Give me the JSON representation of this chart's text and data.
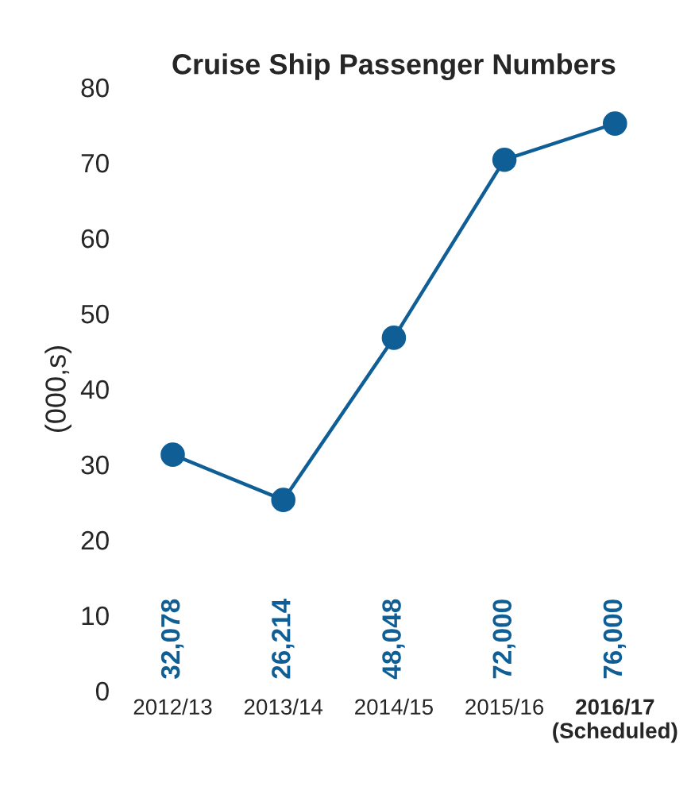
{
  "chart_data": {
    "type": "line",
    "title": "Cruise Ship Passenger Numbers",
    "ylabel": "(000,s)",
    "categories": [
      "2012/13",
      "2013/14",
      "2014/15",
      "2015/16",
      "2016/17\n(Scheduled)"
    ],
    "series": [
      {
        "color": "#0f5f96",
        "values": [
          31.3,
          25.3,
          46.8,
          70.4,
          75.2
        ]
      }
    ],
    "annotations": [
      "32,078",
      "26,214",
      "48,048",
      "72,000",
      "76,000"
    ],
    "ylim": [
      0,
      80
    ],
    "yticks": [
      0,
      10,
      20,
      30,
      40,
      50,
      60,
      70,
      80
    ],
    "grid": false,
    "legend": false,
    "marker": "circle",
    "line_style": "solid"
  }
}
